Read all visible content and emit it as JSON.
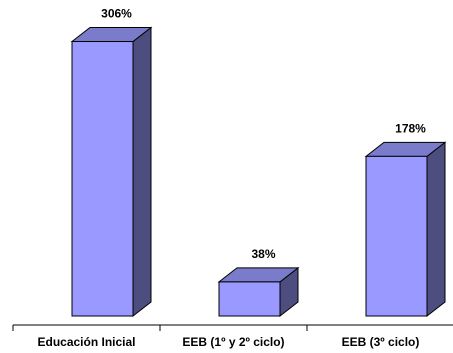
{
  "chart_data": {
    "type": "bar",
    "style": "3d-column",
    "categories": [
      "Educación Inicial",
      "EEB (1º y 2º ciclo)",
      "EEB (3º ciclo)"
    ],
    "values": [
      306,
      38,
      178
    ],
    "data_labels": [
      "306%",
      "38%",
      "178%"
    ],
    "title": "",
    "xlabel": "",
    "ylabel": "",
    "ylim": [
      0,
      330
    ],
    "grid": false,
    "legend": "none",
    "colors": {
      "front": "#9999FF",
      "side": "#4D4D80",
      "top": "#7B7BCC",
      "edge": "#000000"
    }
  }
}
